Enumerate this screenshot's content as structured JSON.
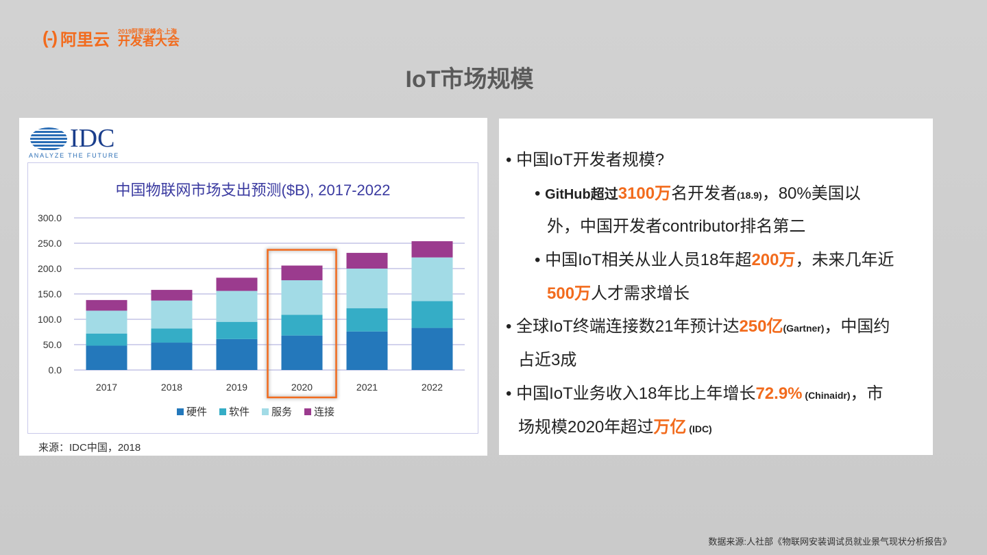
{
  "header": {
    "logo_mark": "(-)",
    "logo_name": "阿里云",
    "event_sub": "2019阿里云峰会·上海",
    "event_title": "开发者大会"
  },
  "slide_title": "IoT市场规模",
  "idc": {
    "name": "IDC",
    "tagline": "ANALYZE THE FUTURE",
    "source": "来源：IDC中国，2018"
  },
  "chart_data": {
    "type": "bar",
    "stacked": true,
    "title": "中国物联网市场支出预测($B), 2017-2022",
    "categories": [
      "2017",
      "2018",
      "2019",
      "2020",
      "2021",
      "2022"
    ],
    "series": [
      {
        "name": "硬件",
        "color": "#2478bb",
        "values": [
          48,
          54,
          61,
          68,
          76,
          83
        ]
      },
      {
        "name": "软件",
        "color": "#35adc6",
        "values": [
          24,
          28,
          34,
          41,
          46,
          53
        ]
      },
      {
        "name": "服务",
        "color": "#a2dbe6",
        "values": [
          45,
          55,
          61,
          68,
          78,
          86
        ]
      },
      {
        "name": "连接",
        "color": "#9b3b8e",
        "values": [
          21,
          21,
          26,
          29,
          31,
          32
        ]
      }
    ],
    "yticks": [
      "0.0",
      "50.0",
      "100.0",
      "150.0",
      "200.0",
      "250.0",
      "300.0"
    ],
    "ylim": [
      0,
      300
    ],
    "grid": true,
    "legend": "bottom",
    "highlight": "2020",
    "highlight_color": "#f26b1d"
  },
  "bullets": {
    "l1": "中国IoT开发者规模?",
    "l2a": "GitHub超过",
    "l2b": "3100万",
    "l2c": "名开发者",
    "l2d": "(18.9)",
    "l2e": "，80%美国以",
    "l3": "外，中国开发者contributor排名第二",
    "l4a": "中国IoT相关从业人员18年超",
    "l4b": "200万",
    "l4c": "，未来几年近",
    "l5a": "500万",
    "l5b": "人才需求增长",
    "l6a": "全球IoT终端连接数21年预计达",
    "l6b": "250亿",
    "l6c": "(Gartner)",
    "l6d": "，中国约",
    "l7": "占近3成",
    "l8a": "中国IoT业务收入18年比上年增长",
    "l8b": "72.9%",
    "l8c": " (Chinaidr)",
    "l8d": "，市",
    "l9a": "场规模2020年超过",
    "l9b": "万亿",
    "l9c": " (IDC)"
  },
  "footer": "数据来源:人社部《物联网安装调试员就业景气现状分析报告》"
}
